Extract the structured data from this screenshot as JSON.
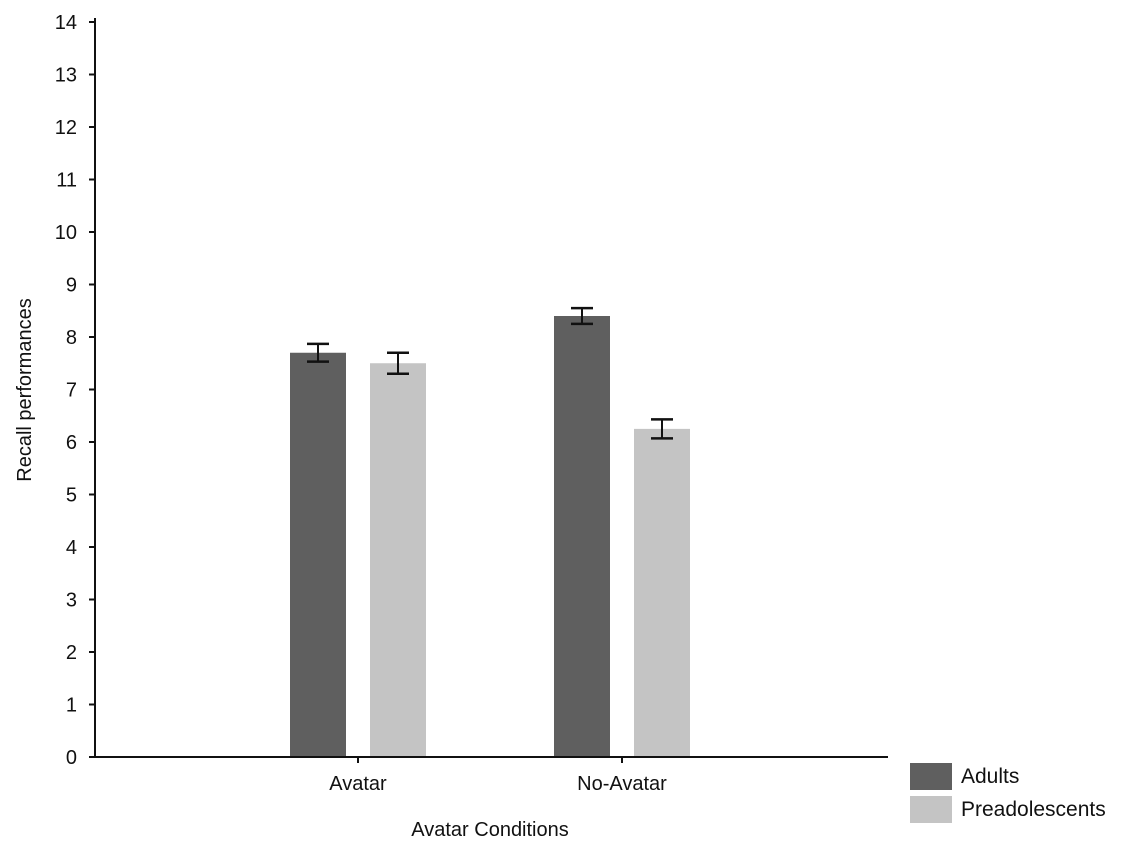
{
  "chart_data": {
    "type": "bar",
    "title": "",
    "xlabel": "Avatar Conditions",
    "ylabel": "Recall performances",
    "categories": [
      "Avatar",
      "No-Avatar"
    ],
    "series": [
      {
        "name": "Adults",
        "color": "#5f5f5f",
        "values": [
          7.7,
          8.4
        ],
        "error": [
          0.17,
          0.15
        ]
      },
      {
        "name": "Preadolescents",
        "color": "#c4c4c4",
        "values": [
          7.5,
          6.25
        ],
        "error": [
          0.2,
          0.18
        ]
      }
    ],
    "ylim": [
      0,
      14
    ],
    "yticks": [
      0,
      1,
      2,
      3,
      4,
      5,
      6,
      7,
      8,
      9,
      10,
      11,
      12,
      13,
      14
    ],
    "grid": false,
    "legend_position": "bottom-right"
  }
}
